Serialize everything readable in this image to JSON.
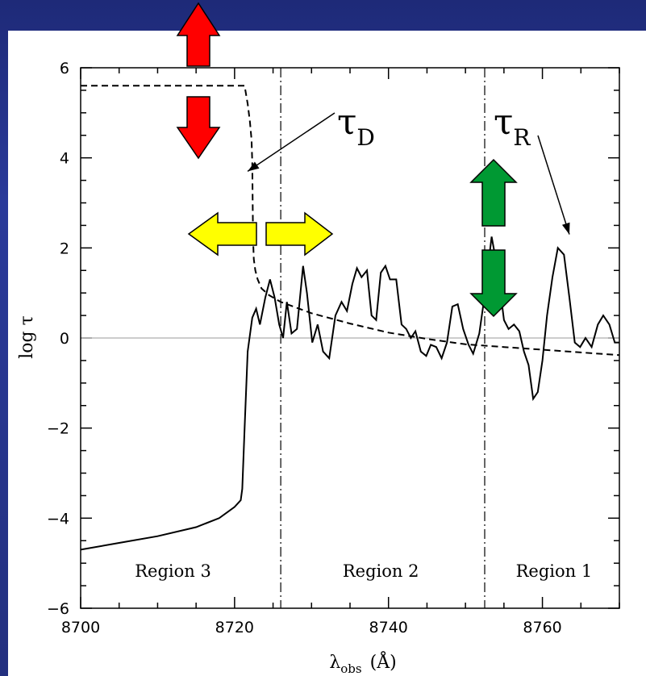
{
  "chart_data": {
    "type": "line",
    "xlabel": "λ",
    "xlabel_sub": "obs",
    "xlabel_unit": "(Å)",
    "ylabel": "log τ",
    "xlim": [
      8700,
      8770
    ],
    "ylim": [
      -6,
      6
    ],
    "x_ticks": [
      8700,
      8720,
      8740,
      8760
    ],
    "x_tick_labels": [
      "8700",
      "8720",
      "8740",
      "8760"
    ],
    "y_ticks": [
      -6,
      -4,
      -2,
      0,
      2,
      4,
      6
    ],
    "y_tick_labels": [
      "−6",
      "−4",
      "−2",
      "0",
      "2",
      "4",
      "6"
    ],
    "zero_line": 0,
    "region_boundaries": [
      8726,
      8752.5
    ],
    "regions": [
      {
        "label": "Region 3",
        "x": 8712
      },
      {
        "label": "Region 2",
        "x": 8739
      },
      {
        "label": "Region 1",
        "x": 8761.5
      }
    ],
    "series": [
      {
        "style": "solid",
        "x": [
          8700,
          8705,
          8710,
          8715,
          8718,
          8720,
          8720.8,
          8721,
          8721.3,
          8721.7,
          8722.3,
          8722.8,
          8723.3,
          8724,
          8724.6,
          8725.2,
          8725.8,
          8726.3,
          8726.8,
          8727.4,
          8728.1,
          8728.9,
          8729.4,
          8730.1,
          8730.8,
          8731.5,
          8732.3,
          8733.1,
          8733.9,
          8734.6,
          8735.3,
          8735.9,
          8736.5,
          8737.2,
          8737.8,
          8738.4,
          8739,
          8739.6,
          8740.2,
          8741,
          8741.7,
          8742.3,
          8742.9,
          8743.5,
          8744.2,
          8744.9,
          8745.5,
          8746.2,
          8746.9,
          8747.6,
          8748.3,
          8749,
          8749.7,
          8750.4,
          8751,
          8751.8,
          8752.5,
          8753.4,
          8754.2,
          8755,
          8755.6,
          8756.3,
          8757,
          8757.6,
          8758.2,
          8758.8,
          8759.4,
          8760,
          8760.6,
          8761.3,
          8762,
          8762.8,
          8763.5,
          8764.2,
          8764.9,
          8765.6,
          8766.4,
          8767.2,
          8767.9,
          8768.7,
          8769.4,
          8770
        ],
        "y": [
          -4.7,
          -4.55,
          -4.4,
          -4.2,
          -4.0,
          -3.75,
          -3.6,
          -3.35,
          -2.0,
          -0.3,
          0.45,
          0.65,
          0.3,
          0.9,
          1.3,
          0.9,
          0.3,
          0.0,
          0.8,
          0.1,
          0.2,
          1.6,
          1.0,
          -0.1,
          0.3,
          -0.3,
          -0.45,
          0.5,
          0.8,
          0.6,
          1.2,
          1.55,
          1.35,
          1.5,
          0.5,
          0.4,
          1.45,
          1.6,
          1.3,
          1.3,
          0.3,
          0.2,
          0.0,
          0.15,
          -0.3,
          -0.4,
          -0.15,
          -0.2,
          -0.45,
          -0.1,
          0.7,
          0.75,
          0.2,
          -0.15,
          -0.35,
          0.1,
          0.95,
          2.25,
          1.5,
          0.4,
          0.2,
          0.3,
          0.15,
          -0.3,
          -0.6,
          -1.35,
          -1.2,
          -0.5,
          0.5,
          1.35,
          2.0,
          1.85,
          0.9,
          -0.1,
          -0.2,
          0.0,
          -0.2,
          0.3,
          0.5,
          0.3,
          -0.1,
          -0.1
        ]
      },
      {
        "style": "dashed",
        "x": [
          8700,
          8704,
          8708,
          8712,
          8716,
          8720,
          8721.3,
          8721.7,
          8722,
          8722.2,
          8722.3,
          8722.35,
          8722.4,
          8722.5,
          8722.7,
          8723,
          8723.5,
          8724.5,
          8726,
          8730,
          8735,
          8740,
          8745,
          8750,
          8755,
          8760,
          8765,
          8770
        ],
        "y": [
          5.6,
          5.6,
          5.6,
          5.6,
          5.6,
          5.6,
          5.6,
          5.2,
          4.8,
          4.4,
          3.9,
          3.0,
          2.2,
          1.75,
          1.5,
          1.3,
          1.1,
          0.95,
          0.8,
          0.55,
          0.32,
          0.12,
          -0.02,
          -0.14,
          -0.2,
          -0.26,
          -0.32,
          -0.38
        ]
      }
    ],
    "annotations": [
      {
        "label": "τ",
        "sub": "D",
        "points_to": [
          8721.7,
          3.7
        ]
      },
      {
        "label": "τ",
        "sub": "R",
        "points_to": [
          8763.5,
          2.3
        ]
      }
    ]
  },
  "arrow_colors": {
    "red": "#ff0000",
    "yellow": "#ffff00",
    "green": "#009933"
  }
}
